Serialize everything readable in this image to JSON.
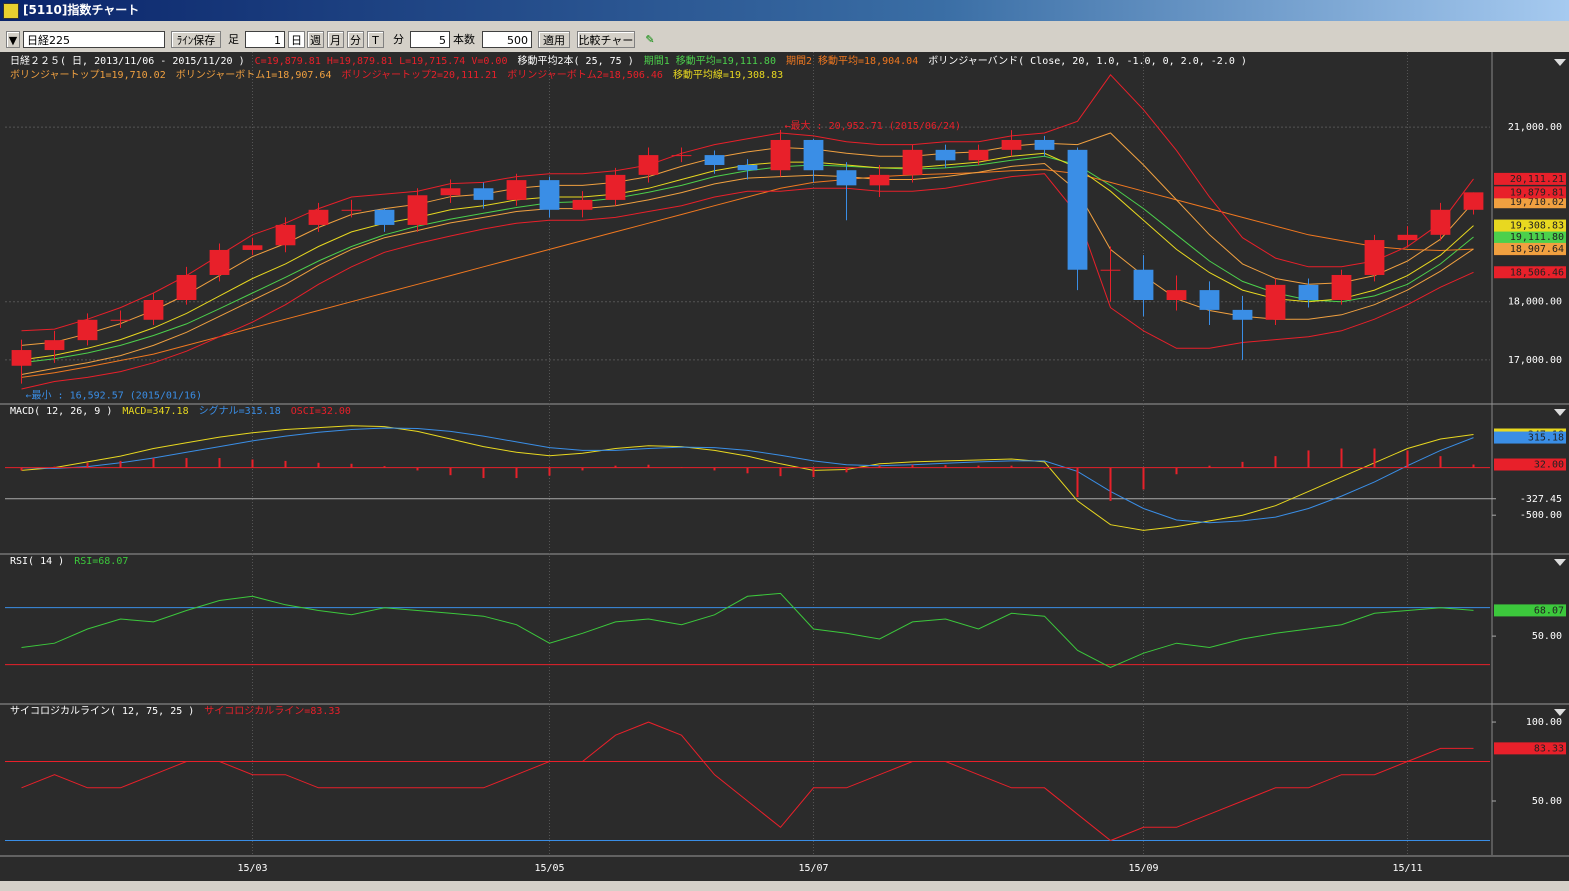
{
  "window": {
    "title": "[5110]指数チャート"
  },
  "toolbar": {
    "symbol": "日経225",
    "save": "ﾗｲﾝ保存",
    "foot": "足",
    "foot_n": "1",
    "day": "日",
    "week": "週",
    "month": "月",
    "minute": "分",
    "tick": "T",
    "minute_label": "分",
    "minute_n": "5",
    "count_label": "本数",
    "count": "500",
    "apply": "適用",
    "compare": "比較チャート"
  },
  "chart_data": [
    {
      "type": "candlestick",
      "title": "日経２２５( 日, 2013/11/06 - 2015/11/20 )",
      "ohlc_text": "C=19,879.81 H=19,879.81 L=19,715.74 V=0.00",
      "ma_title": "移動平均2本( 25, 75 )",
      "bb_title": "ボリンジャーバンド( Close, 20, 1.0, -1.0, 0, 2.0, -2.0 )",
      "categories": [
        null,
        null,
        null,
        null,
        null,
        null,
        null,
        "15/03",
        null,
        null,
        null,
        null,
        null,
        null,
        null,
        null,
        "15/05",
        null,
        null,
        null,
        null,
        null,
        null,
        null,
        "15/07",
        null,
        null,
        null,
        null,
        null,
        null,
        null,
        null,
        null,
        "15/09",
        null,
        null,
        null,
        null,
        null,
        null,
        null,
        "15/11",
        null,
        null
      ],
      "open": [
        16900,
        17170,
        17340,
        17690,
        17690,
        18030,
        18460,
        18890,
        18970,
        19320,
        19580,
        19580,
        19320,
        19830,
        19950,
        19750,
        20090,
        19580,
        19750,
        20180,
        20520,
        20520,
        20350,
        20260,
        20780,
        20260,
        20000,
        20180,
        20610,
        20430,
        20610,
        20780,
        20610,
        18550,
        18550,
        18030,
        18200,
        17860,
        17690,
        18290,
        18030,
        18460,
        19060,
        19150,
        19580
      ],
      "high": [
        17350,
        17500,
        17800,
        17850,
        18150,
        18600,
        19000,
        19100,
        19450,
        19700,
        19750,
        19600,
        19950,
        20100,
        20050,
        20200,
        20150,
        19900,
        20300,
        20650,
        20650,
        20600,
        20450,
        20952.71,
        20800,
        20400,
        20350,
        20700,
        20700,
        20700,
        20950,
        20850,
        20650,
        18950,
        18800,
        18450,
        18350,
        18100,
        18400,
        18400,
        18550,
        19150,
        19300,
        19700,
        19879.81
      ],
      "low": [
        16592.57,
        16950,
        17250,
        17550,
        17600,
        17950,
        18350,
        18800,
        18850,
        19200,
        19450,
        19200,
        19200,
        19700,
        19600,
        19650,
        19450,
        19450,
        19650,
        20050,
        20400,
        20200,
        20100,
        20150,
        20050,
        19400,
        19800,
        20050,
        20300,
        20350,
        20500,
        20500,
        18200,
        18000,
        17750,
        17850,
        17600,
        17000,
        17600,
        17900,
        17950,
        18350,
        18950,
        19050,
        19500
      ],
      "close": [
        17170,
        17340,
        17690,
        17690,
        18030,
        18460,
        18890,
        18970,
        19320,
        19580,
        19580,
        19320,
        19830,
        19950,
        19750,
        20090,
        19580,
        19750,
        20180,
        20520,
        20520,
        20350,
        20260,
        20780,
        20260,
        20000,
        20180,
        20610,
        20430,
        20610,
        20780,
        20610,
        18550,
        18550,
        18030,
        18200,
        17860,
        17690,
        18290,
        18030,
        18460,
        19060,
        19150,
        19580,
        19879.81
      ],
      "close_label": "19,879.81",
      "up_color": "#e8202a",
      "down_color": "#3a8ee6",
      "series": [
        {
          "name": "期間1 移動平均=19,111.80",
          "color": "#4cd04c",
          "last_label": "19,111.80",
          "values": [
            16950,
            17020,
            17120,
            17250,
            17420,
            17620,
            17880,
            18150,
            18420,
            18700,
            18950,
            19150,
            19300,
            19420,
            19520,
            19620,
            19700,
            19720,
            19780,
            19880,
            20000,
            20150,
            20250,
            20320,
            20350,
            20330,
            20300,
            20280,
            20300,
            20350,
            20430,
            20500,
            20350,
            20000,
            19600,
            19150,
            18700,
            18350,
            18150,
            18030,
            18000,
            18100,
            18300,
            18650,
            19111.8
          ]
        },
        {
          "name": "期間2 移動平均=18,904.04",
          "color": "#f07820",
          "last_label": "18,904.04",
          "values": [
            16700,
            16780,
            16880,
            16990,
            17100,
            17250,
            17400,
            17550,
            17700,
            17850,
            18000,
            18150,
            18300,
            18450,
            18600,
            18750,
            18900,
            19050,
            19200,
            19350,
            19500,
            19650,
            19800,
            19950,
            20050,
            20100,
            20150,
            20180,
            20200,
            20220,
            20250,
            20270,
            20200,
            20050,
            19900,
            19750,
            19600,
            19450,
            19300,
            19150,
            19050,
            18950,
            18900,
            18880,
            18904.04
          ]
        },
        {
          "name": "ボリンジャートップ1=19,710.02",
          "color": "#f0a040",
          "last_label": "19,710.02",
          "values": [
            17250,
            17305,
            17450,
            17625,
            17850,
            18125,
            18450,
            18775,
            19000,
            19275,
            19500,
            19600,
            19675,
            19805,
            19850,
            19950,
            20000,
            20000,
            20050,
            20150,
            20325,
            20475,
            20575,
            20650,
            20625,
            20550,
            20500,
            20500,
            20550,
            20575,
            20675,
            20725,
            20700,
            20900,
            20350,
            19750,
            19150,
            18650,
            18400,
            18300,
            18325,
            18450,
            18700,
            19075,
            19710.02
          ]
        },
        {
          "name": "ボリンジャーボトム1=18,907.64",
          "color": "#f0a040",
          "last_label": "18,907.64",
          "values": [
            16750,
            16855,
            16950,
            17075,
            17250,
            17475,
            17750,
            18025,
            18300,
            18625,
            18900,
            19100,
            19225,
            19355,
            19450,
            19550,
            19600,
            19600,
            19650,
            19750,
            19875,
            20025,
            20125,
            20150,
            20175,
            20150,
            20100,
            20100,
            20150,
            20225,
            20325,
            20375,
            19900,
            18900,
            18450,
            18050,
            17850,
            17750,
            17700,
            17700,
            17775,
            17950,
            18200,
            18525,
            18907.64
          ]
        },
        {
          "name": "ボリンジャートップ2=20,111.21",
          "color": "#e8202a",
          "last_label": "20,111.21",
          "values": [
            17500,
            17530,
            17700,
            17900,
            18150,
            18450,
            18800,
            19150,
            19350,
            19600,
            19800,
            19850,
            19900,
            20030,
            20050,
            20150,
            20200,
            20200,
            20250,
            20350,
            20550,
            20700,
            20800,
            20900,
            20850,
            20750,
            20700,
            20700,
            20750,
            20750,
            20850,
            20900,
            21100,
            21900,
            21300,
            20600,
            19800,
            19100,
            18750,
            18600,
            18600,
            18700,
            18950,
            19350,
            20111.21
          ]
        },
        {
          "name": "ボリンジャーボトム2=18,506.46",
          "color": "#e8202a",
          "last_label": "18,506.46",
          "values": [
            16500,
            16630,
            16700,
            16800,
            16950,
            17150,
            17400,
            17650,
            17950,
            18300,
            18600,
            18850,
            19000,
            19130,
            19250,
            19350,
            19400,
            19400,
            19450,
            19550,
            19650,
            19800,
            19900,
            19900,
            19950,
            19950,
            19900,
            19900,
            19950,
            20050,
            20150,
            20200,
            19500,
            17900,
            17500,
            17200,
            17200,
            17300,
            17350,
            17400,
            17500,
            17700,
            17950,
            18250,
            18506.46
          ]
        },
        {
          "name": "移動平均線=19,308.83",
          "color": "#e8d820",
          "last_label": "19,308.83",
          "values": [
            17000,
            17080,
            17200,
            17350,
            17550,
            17800,
            18100,
            18400,
            18650,
            18950,
            19200,
            19350,
            19450,
            19580,
            19650,
            19750,
            19800,
            19800,
            19850,
            19950,
            20100,
            20250,
            20350,
            20400,
            20400,
            20350,
            20300,
            20300,
            20350,
            20400,
            20500,
            20550,
            20300,
            19900,
            19400,
            18900,
            18500,
            18200,
            18050,
            18000,
            18050,
            18200,
            18450,
            18800,
            19308.83
          ]
        }
      ],
      "annotations": [
        {
          "text": "←最大 : 20,952.71 (2015/06/24)",
          "color": "#e8202a"
        },
        {
          "text": "←最小 : 16,592.57 (2015/01/16)",
          "color": "#3a8ee6"
        }
      ],
      "ylim": [
        16260,
        22240
      ],
      "yticks": [
        {
          "value": 17000,
          "label": "17,000.00"
        },
        {
          "value": 18000,
          "label": "18,000.00"
        },
        {
          "value": 21000,
          "label": "21,000.00"
        }
      ],
      "grid": true
    },
    {
      "type": "macd",
      "title": "MACD( 12, 26, 9 )",
      "series": [
        {
          "name": "MACD=347.18",
          "color": "#e8d820",
          "last_label": "347.18",
          "values": [
            -30,
            0,
            60,
            120,
            200,
            260,
            320,
            365,
            400,
            420,
            440,
            430,
            380,
            300,
            220,
            160,
            125,
            150,
            200,
            230,
            220,
            180,
            120,
            40,
            -30,
            -20,
            40,
            60,
            70,
            80,
            90,
            60,
            -350,
            -600,
            -660,
            -620,
            -560,
            -500,
            -400,
            -250,
            -100,
            50,
            200,
            300,
            347.18
          ]
        },
        {
          "name": "シグナル=315.18",
          "color": "#3a8ee6",
          "last_label": "315.18",
          "values": [
            0,
            -10,
            10,
            50,
            100,
            160,
            220,
            280,
            330,
            370,
            400,
            415,
            410,
            380,
            330,
            270,
            210,
            180,
            180,
            200,
            215,
            210,
            180,
            130,
            70,
            30,
            20,
            30,
            45,
            60,
            70,
            70,
            -40,
            -250,
            -430,
            -550,
            -580,
            -560,
            -520,
            -430,
            -300,
            -150,
            20,
            180,
            315.18
          ]
        },
        {
          "name": "OSCI=32.00",
          "color": "#e8202a",
          "type": "histogram",
          "last_label": "32.00",
          "values": [
            -30,
            10,
            50,
            70,
            100,
            100,
            100,
            85,
            70,
            50,
            40,
            15,
            -30,
            -80,
            -110,
            -110,
            -85,
            -30,
            20,
            30,
            5,
            -30,
            -60,
            -90,
            -100,
            -50,
            20,
            30,
            25,
            20,
            20,
            -10,
            -310,
            -350,
            -230,
            -70,
            20,
            60,
            120,
            180,
            200,
            200,
            180,
            120,
            32
          ]
        }
      ],
      "reference": {
        "value": -327.45,
        "label": "-327.45"
      },
      "ylim": [
        -897,
        657
      ],
      "yticks": [
        {
          "value": -500,
          "label": "-500.00"
        }
      ]
    },
    {
      "type": "line",
      "title": "RSI( 14 )",
      "series": [
        {
          "name": "RSI=68.07",
          "color": "#3cc83c",
          "last_label": "68.07",
          "values": [
            42,
            45,
            55,
            62,
            60,
            68,
            75,
            78,
            72,
            68,
            65,
            70,
            68,
            66,
            64,
            58,
            45,
            52,
            60,
            62,
            58,
            65,
            78,
            80,
            55,
            52,
            48,
            60,
            62,
            55,
            66,
            64,
            40,
            28,
            38,
            45,
            42,
            48,
            52,
            55,
            58,
            66,
            68,
            70,
            68.07
          ]
        }
      ],
      "levels": [
        {
          "value": 70,
          "color": "#3a8ee6"
        },
        {
          "value": 30,
          "color": "#e8202a"
        }
      ],
      "ylim": [
        3,
        107
      ],
      "yticks": [
        {
          "value": 50,
          "label": "50.00"
        }
      ]
    },
    {
      "type": "line",
      "title": "サイコロジカルライン( 12, 75, 25 )",
      "series": [
        {
          "name": "サイコロジカルライン=83.33",
          "color": "#e8202a",
          "last_label": "83.33",
          "values": [
            58.33,
            66.67,
            58.33,
            58.33,
            66.67,
            75,
            75,
            66.67,
            66.67,
            58.33,
            58.33,
            58.33,
            58.33,
            58.33,
            58.33,
            66.67,
            75,
            75,
            91.67,
            100,
            91.67,
            66.67,
            50,
            33.33,
            58.33,
            58.33,
            66.67,
            75,
            75,
            66.67,
            58.33,
            58.33,
            41.67,
            25,
            33.33,
            33.33,
            41.67,
            50,
            58.33,
            58.33,
            66.67,
            66.67,
            75,
            83.33,
            83.33
          ]
        }
      ],
      "levels": [
        {
          "value": 75,
          "color": "#e8202a"
        },
        {
          "value": 25,
          "color": "#3a8ee6"
        }
      ],
      "ylim": [
        15.8,
        110.8
      ],
      "yticks": [
        {
          "value": 50,
          "label": "50.00"
        },
        {
          "value": 100,
          "label": "100.00"
        }
      ]
    }
  ]
}
